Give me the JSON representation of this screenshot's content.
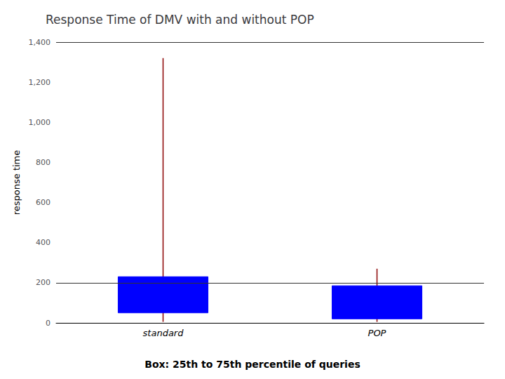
{
  "chart_data": {
    "type": "box",
    "title": "Response Time of DMV with and without POP",
    "ylabel": "response time",
    "caption": "Box: 25th to 75th percentile of queries",
    "categories": [
      "standard",
      "POP"
    ],
    "series": [
      {
        "type": "whisker",
        "color": "#8b0000",
        "low": [
          5,
          5
        ],
        "high": [
          1320,
          270
        ]
      },
      {
        "type": "box",
        "color": "#0000ff",
        "q1": [
          50,
          20
        ],
        "q3": [
          230,
          185
        ]
      }
    ],
    "ylim": [
      0,
      1400
    ],
    "yticks": [
      0,
      200,
      400,
      600,
      800,
      1000,
      1200,
      1400
    ],
    "grid_lines": [
      200,
      1400
    ]
  }
}
